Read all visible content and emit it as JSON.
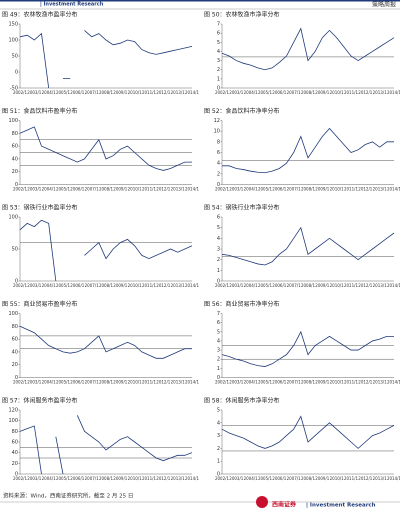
{
  "header": {
    "brand": "| Investment Research",
    "tag": "策略周报"
  },
  "chart_data": [
    {
      "type": "line",
      "title": "图 49：农林牧渔市盈率分布",
      "categories": [
        "2002/1",
        null,
        "2003/1",
        null,
        "2004/1",
        null,
        "2005/1",
        null,
        "2006/1",
        null,
        "2007/1",
        null,
        "2008/1",
        null,
        "2009/1",
        null,
        "2010/1",
        null,
        "2011/1",
        null,
        "2012/1",
        null,
        "2013/1",
        null,
        "2014/1"
      ],
      "color": "#1f3a7a",
      "values": [
        110,
        115,
        100,
        120,
        -50,
        null,
        -20,
        -20,
        null,
        130,
        110,
        120,
        100,
        85,
        90,
        100,
        95,
        70,
        60,
        55,
        60,
        65,
        70,
        75,
        80
      ],
      "ylim": [
        -50,
        150
      ],
      "yticks": [
        -50,
        0,
        50,
        100,
        150
      ],
      "hlines": []
    },
    {
      "type": "line",
      "title": "图 50：农林牧渔市净率分布",
      "categories": [
        "2002/1",
        null,
        "2003/1",
        null,
        "2004/1",
        null,
        "2005/1",
        null,
        "2006/1",
        null,
        "2007/1",
        null,
        "2008/1",
        null,
        "2009/1",
        null,
        "2010/1",
        null,
        "2011/1",
        null,
        "2012/1",
        null,
        "2013/1",
        null,
        "2014/1"
      ],
      "color": "#1f3a7a",
      "values": [
        3.8,
        3.5,
        3,
        2.7,
        2.5,
        2.2,
        2,
        2.2,
        2.8,
        3.5,
        5,
        6.5,
        3,
        4,
        5.5,
        6.3,
        5.5,
        4.5,
        3.5,
        3,
        3.5,
        4,
        4.5,
        5,
        5.5
      ],
      "ylim": [
        0,
        7
      ],
      "yticks": [
        0,
        1,
        2,
        3,
        4,
        5,
        6,
        7
      ],
      "hlines": [
        3.4
      ]
    },
    {
      "type": "line",
      "title": "图 51：食品饮料市盈率分布",
      "categories": [
        "2002/1",
        null,
        "2003/1",
        null,
        "2004/1",
        null,
        "2005/1",
        null,
        "2006/1",
        null,
        "2007/1",
        null,
        "2008/1",
        null,
        "2009/1",
        null,
        "2010/1",
        null,
        "2011/1",
        null,
        "2012/1",
        null,
        "2013/1",
        null,
        "2014/1"
      ],
      "color": "#1f3a7a",
      "values": [
        80,
        85,
        90,
        60,
        55,
        50,
        45,
        40,
        35,
        40,
        55,
        70,
        40,
        45,
        55,
        60,
        50,
        40,
        30,
        25,
        22,
        25,
        30,
        35,
        35
      ],
      "ylim": [
        0,
        100
      ],
      "yticks": [
        0,
        20,
        40,
        60,
        80,
        100
      ],
      "hlines": [
        30,
        50,
        70
      ]
    },
    {
      "type": "line",
      "title": "图 52：食品饮料市净率分布",
      "categories": [
        "2002/1",
        null,
        "2003/1",
        null,
        "2004/1",
        null,
        "2005/1",
        null,
        "2006/1",
        null,
        "2007/1",
        null,
        "2008/1",
        null,
        "2009/1",
        null,
        "2010/1",
        null,
        "2011/1",
        null,
        "2012/1",
        null,
        "2013/1",
        null,
        "2014/1"
      ],
      "color": "#1f3a7a",
      "values": [
        3.5,
        3.5,
        3,
        2.8,
        2.5,
        2.3,
        2.2,
        2.5,
        3,
        4,
        6,
        9,
        5,
        7,
        9,
        10.5,
        9,
        7.5,
        6,
        6.5,
        7.5,
        8,
        7,
        8,
        8
      ],
      "ylim": [
        0,
        12
      ],
      "yticks": [
        0,
        2,
        4,
        6,
        8,
        10,
        12
      ],
      "hlines": [
        4.5
      ]
    },
    {
      "type": "line",
      "title": "图 53：钢铁行业市盈率分布",
      "categories": [
        "2002/1",
        null,
        "2003/1",
        null,
        "2004/1",
        null,
        "2005/1",
        null,
        "2006/1",
        null,
        "2007/1",
        null,
        "2008/1",
        null,
        "2009/1",
        null,
        "2010/1",
        null,
        "2011/1",
        null,
        "2012/1",
        null,
        "2013/1",
        null,
        "2014/1"
      ],
      "color": "#1f3a7a",
      "values": [
        80,
        90,
        85,
        95,
        90,
        0,
        null,
        0,
        null,
        40,
        50,
        60,
        35,
        50,
        60,
        65,
        55,
        40,
        35,
        40,
        45,
        50,
        45,
        50,
        55
      ],
      "ylim": [
        0,
        100
      ],
      "yticks": [
        0,
        50,
        100
      ],
      "hlines": [
        60
      ]
    },
    {
      "type": "line",
      "title": "图 54：钢铁行业市净率分布",
      "categories": [
        "2002/1",
        null,
        "2003/1",
        null,
        "2004/1",
        null,
        "2005/1",
        null,
        "2006/1",
        null,
        "2007/1",
        null,
        "2008/1",
        null,
        "2009/1",
        null,
        "2010/1",
        null,
        "2011/1",
        null,
        "2012/1",
        null,
        "2013/1",
        null,
        "2014/1"
      ],
      "color": "#1f3a7a",
      "values": [
        2.5,
        2.4,
        2.2,
        2,
        1.8,
        1.6,
        1.5,
        1.8,
        2.5,
        3,
        4,
        5,
        2.5,
        3,
        3.5,
        4,
        3.5,
        3,
        2.5,
        2,
        2.5,
        3,
        3.5,
        4,
        4.5
      ],
      "ylim": [
        0,
        6
      ],
      "yticks": [
        0,
        1,
        2,
        3,
        4,
        5,
        6
      ],
      "hlines": [
        2.3
      ]
    },
    {
      "type": "line",
      "title": "图 55：商业贸易市盈率分布",
      "categories": [
        "2002/1",
        null,
        "2003/1",
        null,
        "2004/1",
        null,
        "2005/1",
        null,
        "2006/1",
        null,
        "2007/1",
        null,
        "2008/1",
        null,
        "2009/1",
        null,
        "2010/1",
        null,
        "2011/1",
        null,
        "2012/1",
        null,
        "2013/1",
        null,
        "2014/1"
      ],
      "color": "#1f3a7a",
      "values": [
        80,
        75,
        70,
        60,
        50,
        45,
        40,
        38,
        40,
        45,
        55,
        65,
        40,
        45,
        50,
        55,
        50,
        40,
        35,
        30,
        30,
        35,
        40,
        45,
        45
      ],
      "ylim": [
        0,
        100
      ],
      "yticks": [
        0,
        20,
        40,
        60,
        80,
        100
      ],
      "hlines": [
        45,
        65
      ]
    },
    {
      "type": "line",
      "title": "图 56：商业贸易市净率分布",
      "categories": [
        "2002/1",
        null,
        "2003/1",
        null,
        "2004/1",
        null,
        "2005/1",
        null,
        "2006/1",
        null,
        "2007/1",
        null,
        "2008/1",
        null,
        "2009/1",
        null,
        "2010/1",
        null,
        "2011/1",
        null,
        "2012/1",
        null,
        "2013/1",
        null,
        "2014/1"
      ],
      "color": "#1f3a7a",
      "values": [
        2.5,
        2.3,
        2,
        1.8,
        1.5,
        1.3,
        1.2,
        1.5,
        2,
        2.5,
        3.5,
        5,
        2.5,
        3.5,
        4,
        4.5,
        4,
        3.5,
        3,
        3,
        3.5,
        4,
        4.2,
        4.5,
        4.5
      ],
      "ylim": [
        0,
        7
      ],
      "yticks": [
        0,
        1,
        2,
        3,
        4,
        5,
        6,
        7
      ],
      "hlines": [
        2,
        3.5
      ]
    },
    {
      "type": "line",
      "title": "图 57：休闲服务市盈率分布",
      "categories": [
        "2002/1",
        null,
        "2003/1",
        null,
        "2004/1",
        null,
        "2005/1",
        null,
        "2006/1",
        null,
        "2007/1",
        null,
        "2008/1",
        null,
        "2009/1",
        null,
        "2010/1",
        null,
        "2011/1",
        null,
        "2012/1",
        null,
        "2013/1",
        null,
        "2014/1"
      ],
      "color": "#1f3a7a",
      "values": [
        80,
        85,
        90,
        0,
        null,
        70,
        0,
        null,
        110,
        80,
        70,
        60,
        45,
        55,
        65,
        70,
        60,
        50,
        40,
        30,
        25,
        30,
        35,
        35,
        40
      ],
      "ylim": [
        0,
        120
      ],
      "yticks": [
        0,
        20,
        40,
        60,
        80,
        100,
        120
      ],
      "hlines": [
        30,
        50
      ]
    },
    {
      "type": "line",
      "title": "图 58：休闲服务市净率分布",
      "categories": [
        "2002/1",
        null,
        "2003/1",
        null,
        "2004/1",
        null,
        "2005/1",
        null,
        "2006/1",
        null,
        "2007/1",
        null,
        "2008/1",
        null,
        "2009/1",
        null,
        "2010/1",
        null,
        "2011/1",
        null,
        "2012/1",
        null,
        "2013/1",
        null,
        "2014/1"
      ],
      "color": "#1f3a7a",
      "values": [
        3.5,
        3.2,
        3,
        2.8,
        2.5,
        2.2,
        2,
        2.2,
        2.5,
        3,
        3.5,
        4.5,
        2.5,
        3,
        3.5,
        4,
        3.5,
        3,
        2.5,
        2,
        2.5,
        3,
        3.2,
        3.5,
        3.8
      ],
      "ylim": [
        0,
        5
      ],
      "yticks": [
        0,
        1,
        2,
        3,
        4,
        5
      ],
      "hlines": [
        1.8,
        3.8
      ]
    }
  ],
  "footer": {
    "source": "资料来源：Wind，西南证券研究所，截至 2 月 25 日",
    "logo": "西南证券",
    "brand": "| Investment Research"
  }
}
